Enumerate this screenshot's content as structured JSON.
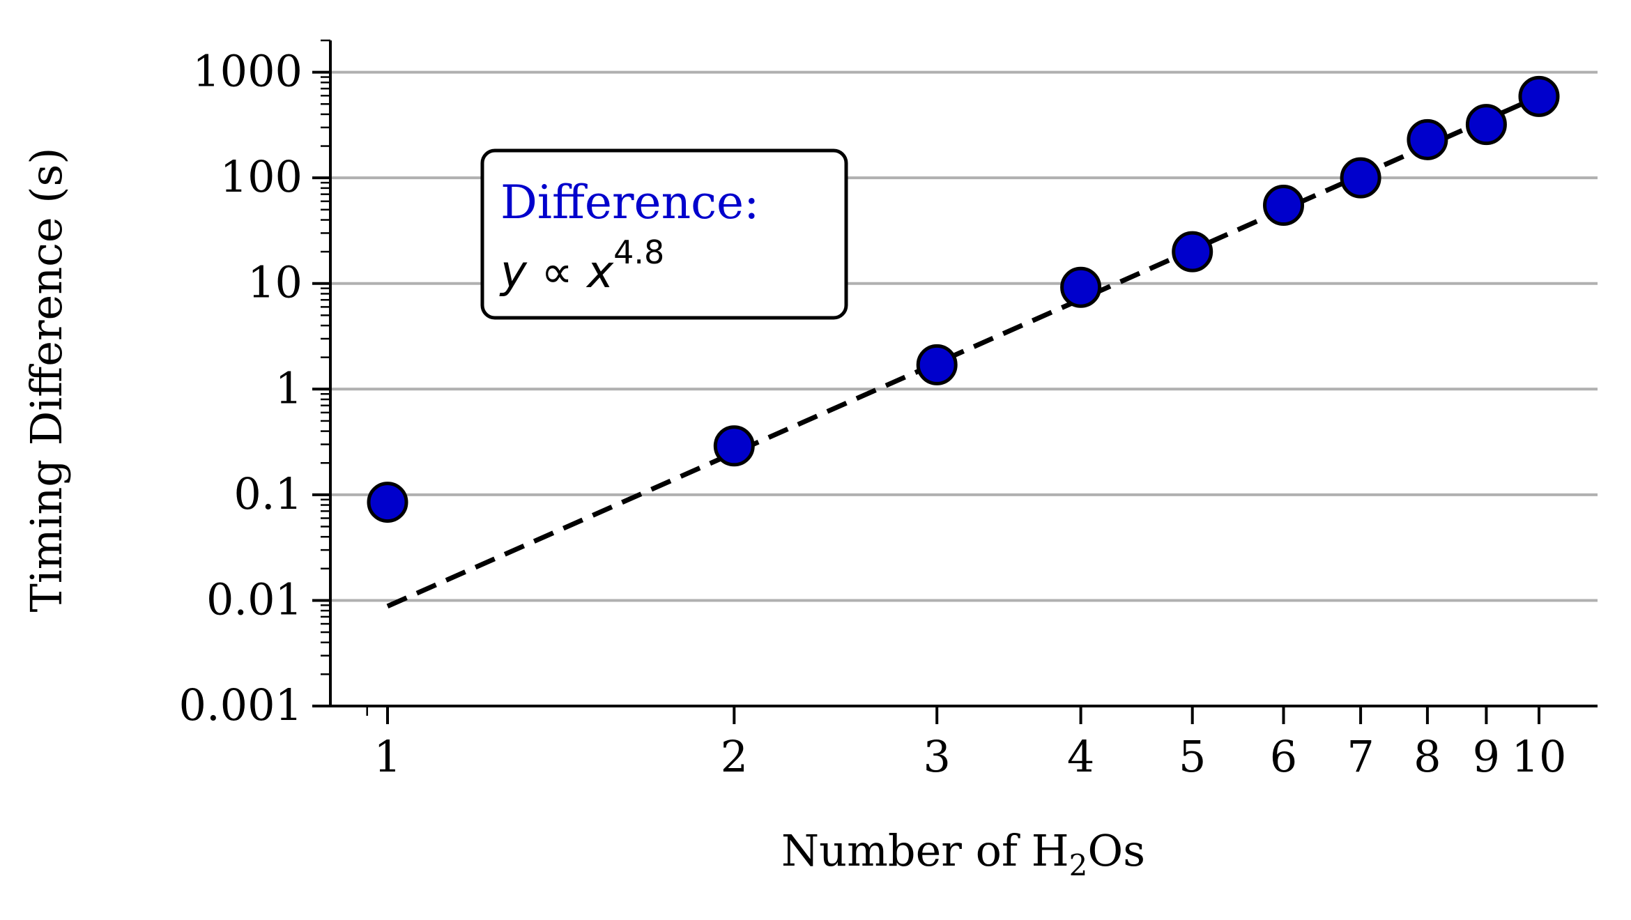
{
  "chart_data": {
    "type": "scatter",
    "x_scale": "log",
    "y_scale": "log",
    "xlabel": {
      "main": "Number of H",
      "sub": "2",
      "tail": "Os"
    },
    "ylabel": "Timing Difference (s)",
    "xlim": [
      0.92,
      11.3
    ],
    "ylim": [
      0.001,
      2000
    ],
    "x_ticks": [
      1,
      2,
      3,
      4,
      5,
      6,
      7,
      8,
      9,
      10
    ],
    "x_tick_labels": [
      "1",
      "2",
      "3",
      "4",
      "5",
      "6",
      "7",
      "8",
      "9",
      "10"
    ],
    "y_ticks": [
      0.001,
      0.01,
      0.1,
      1,
      10,
      100,
      1000
    ],
    "y_tick_labels": [
      "0.001",
      "0.01",
      "0.1",
      "1",
      "10",
      "100",
      "1000"
    ],
    "grid": "horizontal major",
    "series": [
      {
        "x": [
          1,
          2,
          3,
          4,
          5,
          6,
          7,
          8,
          9,
          10
        ],
        "y": [
          0.085,
          0.29,
          1.7,
          9.2,
          20,
          55,
          100,
          230,
          320,
          590
        ],
        "color": "#0000cc",
        "edge_color": "#000000",
        "marker": "circle"
      }
    ],
    "fit_line": {
      "style": "dashed",
      "color": "#000000",
      "x": [
        1,
        10
      ],
      "y": [
        0.0088,
        590
      ]
    },
    "annotation": {
      "title": "Difference:",
      "title_color": "#0000cc",
      "formula_base": "y ∝ x",
      "formula_exp": "4.8"
    }
  }
}
